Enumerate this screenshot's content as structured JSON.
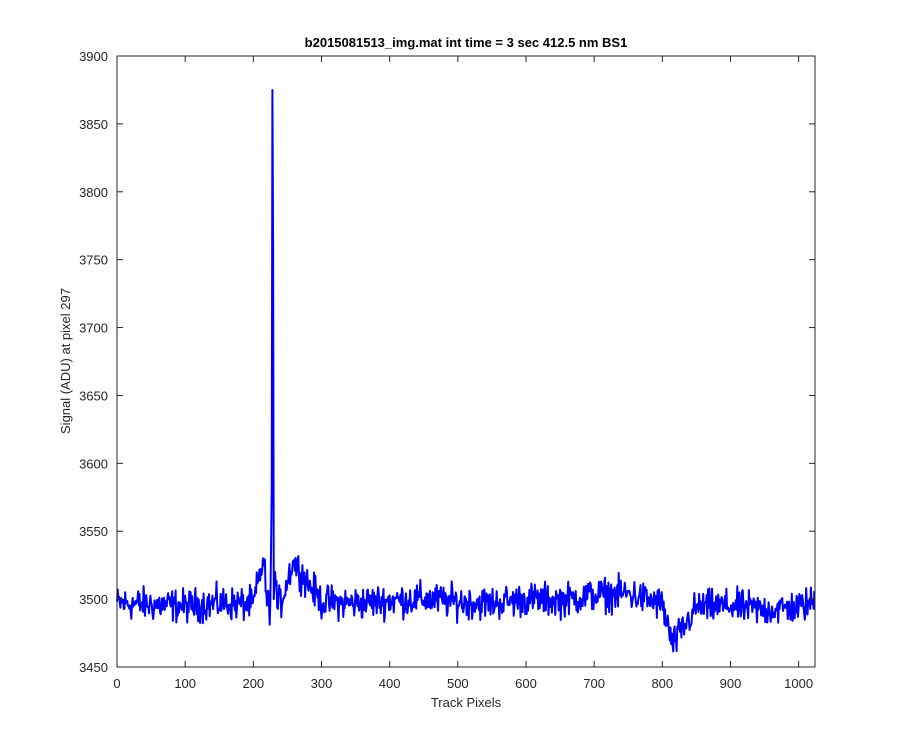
{
  "chart_data": {
    "type": "line",
    "title": "b2015081513_img.mat int time = 3 sec  412.5 nm BS1",
    "xlabel": "Track Pixels",
    "ylabel": "Signal (ADU) at pixel 297",
    "xlim": [
      0,
      1024
    ],
    "ylim": [
      3450,
      3900
    ],
    "xticks": [
      0,
      100,
      200,
      300,
      400,
      500,
      600,
      700,
      800,
      900,
      1000
    ],
    "yticks": [
      3450,
      3500,
      3550,
      3600,
      3650,
      3700,
      3750,
      3800,
      3850,
      3900
    ],
    "grid": false,
    "legend": "none",
    "series_color": "#0000ff",
    "series": [
      {
        "x": [
          0,
          50,
          100,
          150,
          200,
          215,
          220,
          225,
          227,
          228,
          229,
          230,
          232,
          235,
          240,
          258,
          300,
          350,
          400,
          450,
          500,
          550,
          600,
          650,
          700,
          750,
          800,
          815,
          850,
          900,
          950,
          1000,
          1023
        ],
        "values": [
          3497,
          3496,
          3495,
          3497,
          3496,
          3530,
          3498,
          3495,
          3580,
          3875,
          3760,
          3500,
          3520,
          3496,
          3497,
          3528,
          3498,
          3497,
          3499,
          3500,
          3498,
          3497,
          3500,
          3499,
          3503,
          3504,
          3496,
          3466,
          3494,
          3495,
          3492,
          3494,
          3498
        ],
        "baseline_mean": 3497,
        "noise_amplitude": 12
      }
    ]
  }
}
